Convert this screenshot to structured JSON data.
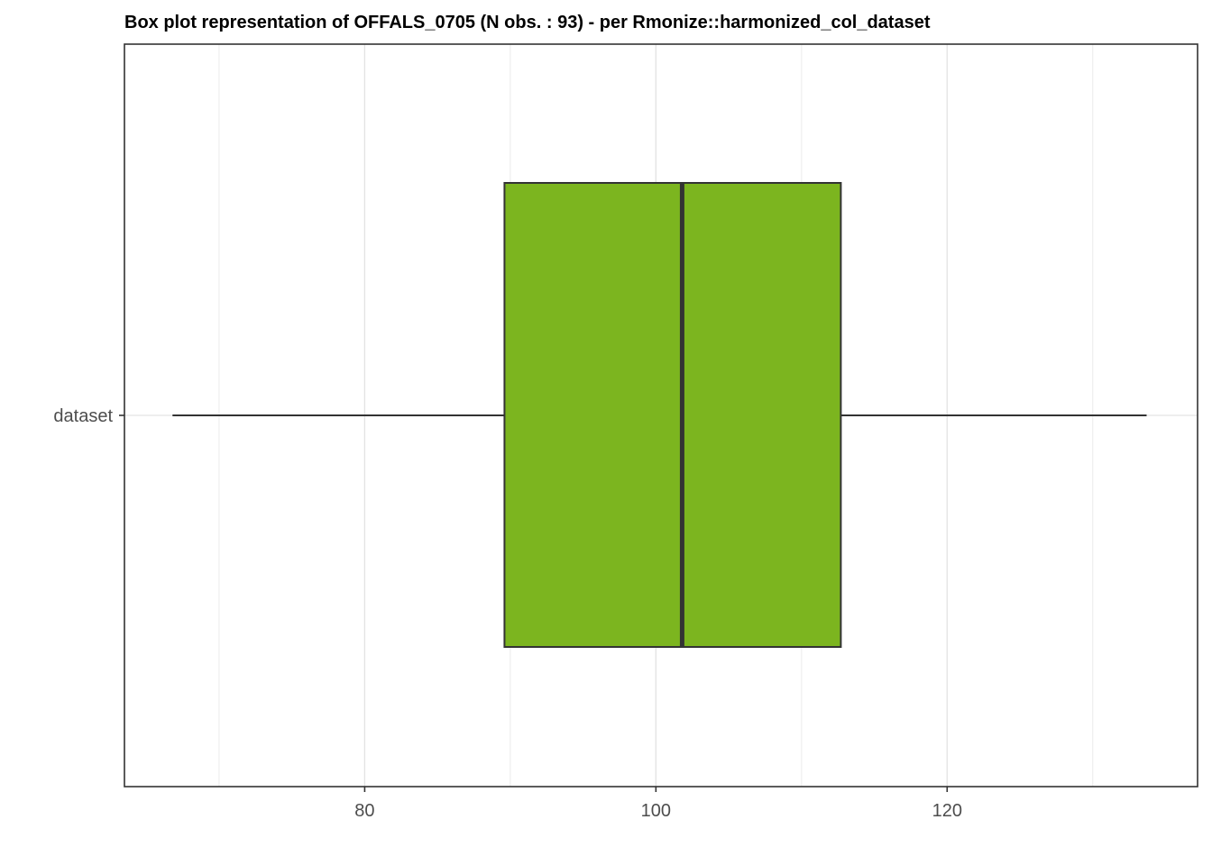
{
  "chart_data": {
    "type": "boxplot",
    "title": "Box plot representation of OFFALS_0705 (N obs. : 93) - per Rmonize::harmonized_col_dataset",
    "xlabel": "",
    "ylabel": "",
    "orientation": "horizontal",
    "xlim": [
      63.5,
      137.2
    ],
    "x_ticks": [
      80,
      100,
      120
    ],
    "x_minor_ticks": [
      70,
      90,
      110,
      130
    ],
    "categories": [
      "dataset"
    ],
    "boxes": [
      {
        "category": "dataset",
        "whisker_low": 66.8,
        "q1": 89.6,
        "median": 101.8,
        "q3": 112.7,
        "whisker_high": 133.7
      }
    ],
    "grid": true,
    "legend": "none",
    "fill_color": "#7cb51f",
    "line_color": "#333333"
  }
}
